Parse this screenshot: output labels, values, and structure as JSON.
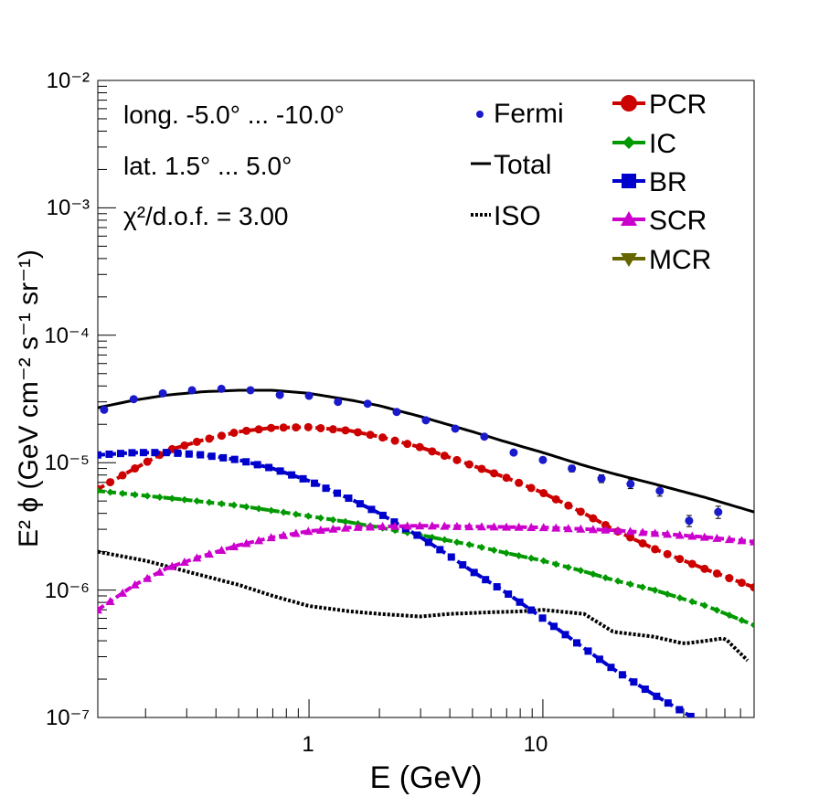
{
  "chart_data": {
    "type": "line",
    "xscale": "log",
    "yscale": "log",
    "xlim": [
      0.125,
      80
    ],
    "ylim": [
      1e-07,
      0.01
    ],
    "xlabel": "E (GeV)",
    "ylabel": "E² ϕ (GeV cm⁻² s⁻¹ sr⁻¹)",
    "x_tick_labels": [
      "1",
      "10"
    ],
    "y_tick_labels": [
      "10⁻⁷",
      "10⁻⁶",
      "10⁻⁵",
      "10⁻⁴",
      "10⁻³",
      "10⁻²"
    ],
    "annotations": [
      "long. -5.0° ... -10.0°",
      "lat. 1.5° ... 5.0°",
      "χ²/d.o.f. = 3.00"
    ],
    "legend_left": [
      {
        "label": "Fermi",
        "marker": "point"
      },
      {
        "label": "Total",
        "marker": "line"
      },
      {
        "label": "ISO",
        "marker": "dotted"
      }
    ],
    "legend_right": [
      {
        "label": "PCR",
        "color": "#cc0000",
        "marker": "circle"
      },
      {
        "label": "IC",
        "color": "#009900",
        "marker": "diamond"
      },
      {
        "label": "BR",
        "color": "#0000cc",
        "marker": "square"
      },
      {
        "label": "SCR",
        "color": "#cc00cc",
        "marker": "triangle-up"
      },
      {
        "label": "MCR",
        "color": "#666600",
        "marker": "triangle-down"
      }
    ],
    "fermi_points": [
      {
        "x": 0.133,
        "y": 2.6e-05,
        "err": 0.04
      },
      {
        "x": 0.178,
        "y": 3.15e-05,
        "err": 0.03
      },
      {
        "x": 0.237,
        "y": 3.5e-05,
        "err": 0.03
      },
      {
        "x": 0.316,
        "y": 3.7e-05,
        "err": 0.03
      },
      {
        "x": 0.422,
        "y": 3.8e-05,
        "err": 0.03
      },
      {
        "x": 0.562,
        "y": 3.7e-05,
        "err": 0.03
      },
      {
        "x": 0.75,
        "y": 3.4e-05,
        "err": 0.03
      },
      {
        "x": 1.0,
        "y": 3.35e-05,
        "err": 0.03
      },
      {
        "x": 1.33,
        "y": 3e-05,
        "err": 0.03
      },
      {
        "x": 1.78,
        "y": 2.9e-05,
        "err": 0.03
      },
      {
        "x": 2.37,
        "y": 2.5e-05,
        "err": 0.03
      },
      {
        "x": 3.16,
        "y": 2.15e-05,
        "err": 0.03
      },
      {
        "x": 4.22,
        "y": 1.85e-05,
        "err": 0.03
      },
      {
        "x": 5.62,
        "y": 1.6e-05,
        "err": 0.03
      },
      {
        "x": 7.5,
        "y": 1.2e-05,
        "err": 0.04
      },
      {
        "x": 10.0,
        "y": 1.05e-05,
        "err": 0.05
      },
      {
        "x": 13.3,
        "y": 9e-06,
        "err": 0.06
      },
      {
        "x": 17.8,
        "y": 7.5e-06,
        "err": 0.07
      },
      {
        "x": 23.7,
        "y": 6.8e-06,
        "err": 0.08
      },
      {
        "x": 31.6,
        "y": 6e-06,
        "err": 0.09
      },
      {
        "x": 42.2,
        "y": 3.5e-06,
        "err": 0.1
      },
      {
        "x": 56.2,
        "y": 4.1e-06,
        "err": 0.11
      }
    ],
    "series": [
      {
        "name": "Total",
        "color": "#000000",
        "style": "solid",
        "markers": false,
        "x": [
          0.125,
          0.18,
          0.25,
          0.35,
          0.5,
          0.7,
          1.0,
          1.5,
          2.0,
          3.0,
          5.0,
          7.0,
          10.0,
          15.0,
          20.0,
          30.0,
          50.0,
          80.0
        ],
        "y": [
          2.7e-05,
          3.1e-05,
          3.4e-05,
          3.6e-05,
          3.7e-05,
          3.7e-05,
          3.5e-05,
          3.1e-05,
          2.8e-05,
          2.3e-05,
          1.75e-05,
          1.45e-05,
          1.2e-05,
          9.5e-06,
          8.2e-06,
          6.8e-06,
          5.3e-06,
          4.1e-06
        ]
      },
      {
        "name": "ISO",
        "color": "#000000",
        "style": "dotted",
        "markers": false,
        "x": [
          0.125,
          0.2,
          0.3,
          0.5,
          0.7,
          1.0,
          1.5,
          2.0,
          3.0,
          4.0,
          6.0,
          8.0,
          10.0,
          15.0,
          20.0,
          30.0,
          40.0,
          50.0,
          60.0,
          75.0
        ],
        "y": [
          2e-06,
          1.7e-06,
          1.4e-06,
          1.1e-06,
          9e-07,
          7.5e-07,
          6.8e-07,
          6.5e-07,
          6.2e-07,
          6.5e-07,
          6.7e-07,
          6.8e-07,
          7e-07,
          6.5e-07,
          4.7e-07,
          4.3e-07,
          3.8e-07,
          4e-07,
          4.2e-07,
          2.8e-07
        ]
      },
      {
        "name": "PCR",
        "color": "#cc0000",
        "style": "dashed",
        "markers": true,
        "x": [
          0.125,
          0.18,
          0.25,
          0.35,
          0.5,
          0.7,
          1.0,
          1.5,
          2.0,
          3.0,
          5.0,
          7.0,
          10.0,
          15.0,
          20.0,
          30.0,
          50.0,
          80.0
        ],
        "y": [
          6.2e-06,
          9e-06,
          1.25e-05,
          1.5e-05,
          1.75e-05,
          1.88e-05,
          1.9e-05,
          1.78e-05,
          1.6e-05,
          1.32e-05,
          9.5e-06,
          7.6e-06,
          5.8e-06,
          4e-06,
          3e-06,
          2.1e-06,
          1.45e-06,
          1.05e-06
        ]
      },
      {
        "name": "IC",
        "color": "#009900",
        "style": "dashed",
        "markers": true,
        "x": [
          0.125,
          0.2,
          0.3,
          0.5,
          0.7,
          1.0,
          1.5,
          2.0,
          3.0,
          5.0,
          7.0,
          10.0,
          15.0,
          20.0,
          30.0,
          50.0,
          80.0
        ],
        "y": [
          6e-06,
          5.5e-06,
          5.1e-06,
          4.6e-06,
          4.2e-06,
          3.8e-06,
          3.4e-06,
          3.1e-06,
          2.7e-06,
          2.25e-06,
          1.95e-06,
          1.7e-06,
          1.4e-06,
          1.2e-06,
          1e-06,
          7.5e-07,
          5.3e-07
        ]
      },
      {
        "name": "BR",
        "color": "#0000cc",
        "style": "dashed",
        "markers": true,
        "x": [
          0.125,
          0.18,
          0.25,
          0.35,
          0.5,
          0.7,
          1.0,
          1.5,
          2.0,
          3.0,
          4.0,
          5.0,
          7.0,
          10.0,
          15.0,
          20.0,
          30.0,
          40.0,
          48.0
        ],
        "y": [
          1.15e-05,
          1.2e-05,
          1.2e-05,
          1.15e-05,
          1.05e-05,
          9e-06,
          7.2e-06,
          5.2e-06,
          4e-06,
          2.6e-06,
          1.85e-06,
          1.4e-06,
          9.5e-07,
          6e-07,
          3.5e-07,
          2.4e-07,
          1.5e-07,
          1.1e-07,
          9e-08
        ]
      },
      {
        "name": "SCR",
        "color": "#cc00cc",
        "style": "dashed",
        "markers": true,
        "x": [
          0.125,
          0.18,
          0.25,
          0.35,
          0.5,
          0.7,
          1.0,
          1.5,
          2.0,
          3.0,
          5.0,
          10.0,
          20.0,
          30.0,
          50.0,
          80.0
        ],
        "y": [
          7e-07,
          1.1e-06,
          1.5e-06,
          1.85e-06,
          2.25e-06,
          2.6e-06,
          2.9e-06,
          3.1e-06,
          3.15e-06,
          3.2e-06,
          3.15e-06,
          3.1e-06,
          2.95e-06,
          2.8e-06,
          2.6e-06,
          2.4e-06
        ]
      }
    ]
  }
}
